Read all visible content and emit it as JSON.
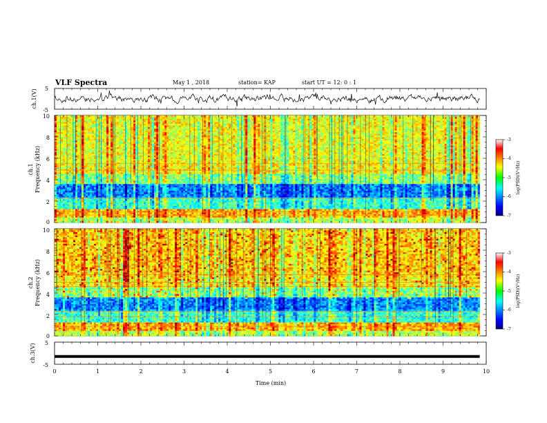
{
  "header": {
    "title": "VLF Spectra",
    "date": "May 1 , 2018",
    "station": "station= KAP",
    "start": "start UT = 12: 0 : 1"
  },
  "chart_data": [
    {
      "type": "line",
      "name": "ch1-waveform",
      "ylabel": "ch.1(V)",
      "ylim": [
        -5,
        5
      ],
      "yticks": [
        "5",
        "-5"
      ],
      "xlim": [
        0,
        10
      ]
    },
    {
      "type": "heatmap",
      "name": "ch1-spectrogram",
      "ylabel": "ch.1\nFrequency (kHz)",
      "ylabel_top": "ch.1",
      "ylabel_main": "Frequency (kHz)",
      "ylim": [
        0,
        10
      ],
      "yticks": [
        "0",
        "2",
        "4",
        "6",
        "8",
        "10"
      ],
      "xlim": [
        0,
        9.85
      ],
      "colorbar": {
        "label": "log(PSD)(V²/Hz)",
        "range": [
          -7,
          -3
        ],
        "ticks": [
          "-3",
          "-4",
          "-5",
          "-6",
          "-7"
        ]
      }
    },
    {
      "type": "heatmap",
      "name": "ch2-spectrogram",
      "ylabel": "ch.2\nFrequency (kHz)",
      "ylabel_top": "ch.2",
      "ylabel_main": "Frequency (kHz)",
      "ylim": [
        0,
        10
      ],
      "yticks": [
        "0",
        "2",
        "4",
        "6",
        "8",
        "10"
      ],
      "xlim": [
        0,
        9.85
      ],
      "colorbar": {
        "label": "log(PSD)(V²/Hz)",
        "range": [
          -7,
          -3
        ],
        "ticks": [
          "-3",
          "-4",
          "-5",
          "-6",
          "-7"
        ]
      }
    },
    {
      "type": "line",
      "name": "ch3-waveform",
      "ylabel": "ch.3(V)",
      "ylim": [
        -5,
        5
      ],
      "yticks": [
        "5",
        "-5"
      ],
      "x": [
        0,
        9.85
      ],
      "y": [
        -1.5,
        -1.5
      ],
      "xlabel": "Time (min)",
      "xticks": [
        "0",
        "1",
        "2",
        "3",
        "4",
        "5",
        "6",
        "7",
        "8",
        "9",
        "10"
      ],
      "xlim": [
        0,
        10
      ]
    }
  ]
}
